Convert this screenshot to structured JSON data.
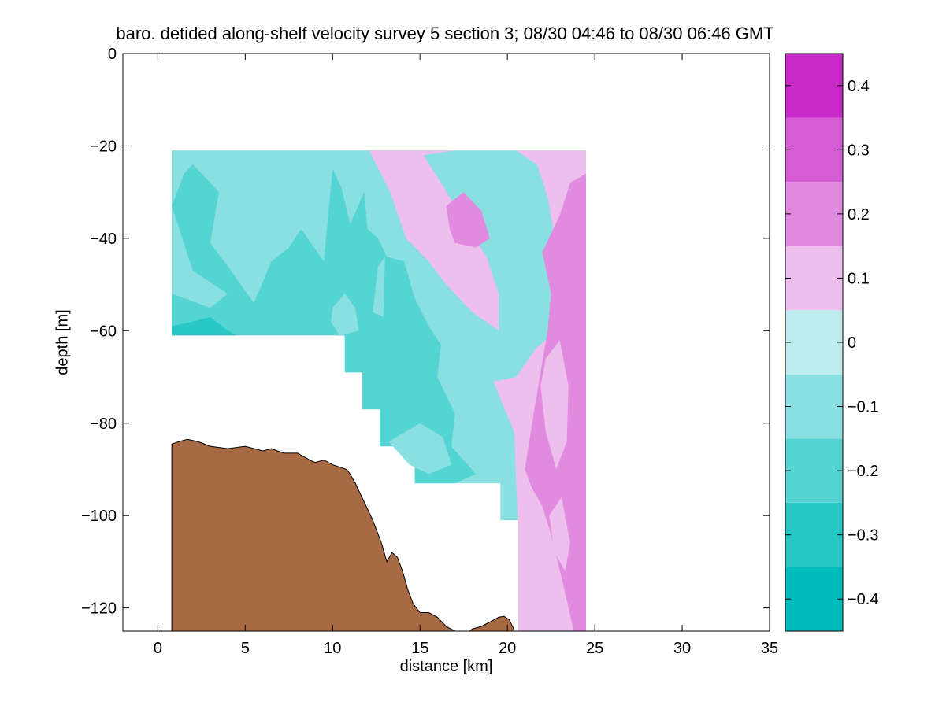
{
  "chart_data": {
    "type": "heatmap",
    "subtype": "filled-contour section",
    "title": "baro. detided along-shelf velocity survey 5 section 3; 08/30 04:46 to 08/30 06:46 GMT",
    "xlabel": "distance [km]",
    "ylabel": "depth [m]",
    "xlim": [
      -2,
      35
    ],
    "ylim": [
      -125,
      0
    ],
    "xticks": [
      0,
      5,
      10,
      15,
      20,
      25,
      30,
      35
    ],
    "yticks": [
      0,
      -20,
      -40,
      -60,
      -80,
      -100,
      -120
    ],
    "grid": false,
    "colorbar": {
      "levels": [
        -0.45,
        -0.35,
        -0.25,
        -0.15,
        -0.05,
        0.05,
        0.15,
        0.25,
        0.35,
        0.45
      ],
      "colors": [
        "#00bcbc",
        "#27c7c8",
        "#55d4d4",
        "#8ae0e0",
        "#bdecec",
        "#eebeec",
        "#e08ae0",
        "#d55cd5",
        "#c82ac8",
        "#bd00bd"
      ],
      "ticks": [
        -0.4,
        -0.3,
        -0.2,
        -0.1,
        0,
        0.1,
        0.2,
        0.3,
        0.4
      ]
    },
    "data_mask": [
      [
        0.8,
        -21
      ],
      [
        24.5,
        -21
      ],
      [
        24.5,
        -125
      ],
      [
        20.6,
        -125
      ],
      [
        20.6,
        -101
      ],
      [
        19.6,
        -101
      ],
      [
        19.6,
        -93
      ],
      [
        14.7,
        -93
      ],
      [
        14.7,
        -85
      ],
      [
        12.7,
        -85
      ],
      [
        12.7,
        -77
      ],
      [
        11.7,
        -77
      ],
      [
        11.7,
        -69
      ],
      [
        10.7,
        -69
      ],
      [
        10.7,
        -61
      ],
      [
        0.8,
        -61
      ]
    ],
    "regions": [
      {
        "level": -0.1,
        "points": [
          [
            0.8,
            -21
          ],
          [
            20.5,
            -21
          ],
          [
            21.7,
            -23
          ],
          [
            22.0,
            -32
          ],
          [
            22.5,
            -40
          ],
          [
            22.8,
            -50
          ],
          [
            23.1,
            -56
          ],
          [
            22.8,
            -60
          ],
          [
            21.5,
            -64
          ],
          [
            20.5,
            -69
          ],
          [
            19.4,
            -72
          ],
          [
            19.9,
            -82
          ],
          [
            19.3,
            -90
          ],
          [
            19.6,
            -93
          ],
          [
            14.7,
            -93
          ],
          [
            14.7,
            -85
          ],
          [
            12.7,
            -85
          ],
          [
            12.7,
            -77
          ],
          [
            11.7,
            -77
          ],
          [
            11.7,
            -69
          ],
          [
            10.7,
            -69
          ],
          [
            10.7,
            -61
          ],
          [
            0.8,
            -61
          ]
        ]
      },
      {
        "level": -0.2,
        "points": [
          [
            0.8,
            -33
          ],
          [
            1.5,
            -26
          ],
          [
            2.0,
            -24
          ],
          [
            3.5,
            -30
          ],
          [
            3.0,
            -41
          ],
          [
            4.0,
            -46
          ],
          [
            5.5,
            -54
          ],
          [
            6.5,
            -45
          ],
          [
            7.5,
            -42
          ],
          [
            8.2,
            -38
          ],
          [
            9.5,
            -45
          ],
          [
            9.8,
            -33
          ],
          [
            10.0,
            -25
          ],
          [
            10.5,
            -29
          ],
          [
            11.0,
            -37
          ],
          [
            11.8,
            -30
          ],
          [
            12.0,
            -38
          ],
          [
            12.6,
            -40
          ],
          [
            13.1,
            -44
          ],
          [
            14.1,
            -45
          ],
          [
            14.7,
            -53
          ],
          [
            15.5,
            -59
          ],
          [
            16.2,
            -63
          ],
          [
            16.0,
            -70
          ],
          [
            17.0,
            -78
          ],
          [
            16.8,
            -85
          ],
          [
            18.2,
            -91
          ],
          [
            17.0,
            -93
          ],
          [
            14.7,
            -93
          ],
          [
            14.7,
            -85
          ],
          [
            12.7,
            -85
          ],
          [
            12.7,
            -77
          ],
          [
            11.7,
            -77
          ],
          [
            11.7,
            -69
          ],
          [
            10.7,
            -69
          ],
          [
            10.7,
            -61
          ],
          [
            0.8,
            -61
          ],
          [
            0.8,
            -52
          ],
          [
            3.0,
            -55
          ],
          [
            4.0,
            -52
          ],
          [
            2.0,
            -47
          ]
        ]
      },
      {
        "level": -0.1,
        "points": [
          [
            10.0,
            -55
          ],
          [
            10.7,
            -52
          ],
          [
            11.3,
            -55
          ],
          [
            11.5,
            -60
          ],
          [
            10.4,
            -61
          ],
          [
            9.9,
            -58
          ]
        ]
      },
      {
        "level": -0.1,
        "points": [
          [
            13.2,
            -84
          ],
          [
            15.0,
            -80
          ],
          [
            16.3,
            -83
          ],
          [
            16.8,
            -89
          ],
          [
            15.5,
            -91
          ],
          [
            14.4,
            -89
          ]
        ]
      },
      {
        "level": -0.1,
        "points": [
          [
            12.3,
            -56
          ],
          [
            12.6,
            -46
          ],
          [
            13.0,
            -44
          ],
          [
            12.9,
            -57
          ]
        ]
      },
      {
        "level": -0.3,
        "points": [
          [
            0.8,
            -59
          ],
          [
            2.0,
            -58
          ],
          [
            3.0,
            -57
          ],
          [
            4.0,
            -60
          ],
          [
            4.5,
            -61
          ],
          [
            0.8,
            -61
          ]
        ]
      },
      {
        "level": 0.1,
        "points": [
          [
            12.1,
            -21
          ],
          [
            20.5,
            -21
          ],
          [
            21.7,
            -24
          ],
          [
            22.3,
            -31
          ],
          [
            22.7,
            -40
          ],
          [
            23.0,
            -50
          ],
          [
            23.1,
            -56
          ],
          [
            22.8,
            -60
          ],
          [
            21.6,
            -64
          ],
          [
            20.5,
            -70
          ],
          [
            19.2,
            -71
          ],
          [
            20.4,
            -82
          ],
          [
            20.5,
            -93
          ],
          [
            20.6,
            -101
          ],
          [
            20.6,
            -125
          ],
          [
            24.5,
            -125
          ],
          [
            24.5,
            -21
          ],
          [
            17.0,
            -21
          ],
          [
            15.2,
            -22
          ],
          [
            16.2,
            -28
          ],
          [
            17.5,
            -36
          ],
          [
            18.8,
            -44
          ],
          [
            19.5,
            -52
          ],
          [
            19.5,
            -60
          ],
          [
            18.0,
            -56
          ],
          [
            16.5,
            -50
          ],
          [
            15.5,
            -45
          ],
          [
            14.2,
            -40
          ],
          [
            13.3,
            -30
          ]
        ]
      },
      {
        "level": 0.2,
        "points": [
          [
            22.0,
            -43
          ],
          [
            23.0,
            -35
          ],
          [
            23.6,
            -28
          ],
          [
            24.5,
            -26
          ],
          [
            24.5,
            -125
          ],
          [
            23.8,
            -125
          ],
          [
            23.2,
            -115
          ],
          [
            22.5,
            -104
          ],
          [
            22.0,
            -98
          ],
          [
            21.4,
            -94
          ],
          [
            21.0,
            -90
          ],
          [
            21.5,
            -78
          ],
          [
            22.3,
            -60
          ],
          [
            22.5,
            -52
          ]
        ]
      },
      {
        "level": 0.2,
        "points": [
          [
            16.5,
            -33
          ],
          [
            17.5,
            -30
          ],
          [
            18.5,
            -34
          ],
          [
            19.0,
            -40
          ],
          [
            18.2,
            -42
          ],
          [
            17.0,
            -41
          ],
          [
            16.7,
            -38
          ]
        ]
      },
      {
        "level": 0.1,
        "points": [
          [
            22.2,
            -66
          ],
          [
            23.0,
            -62
          ],
          [
            23.5,
            -72
          ],
          [
            23.4,
            -84
          ],
          [
            22.8,
            -90
          ],
          [
            22.2,
            -82
          ],
          [
            21.9,
            -72
          ]
        ]
      },
      {
        "level": 0.1,
        "points": [
          [
            22.4,
            -100
          ],
          [
            23.1,
            -96
          ],
          [
            23.6,
            -106
          ],
          [
            23.3,
            -112
          ],
          [
            22.7,
            -108
          ]
        ]
      }
    ],
    "bathymetry": {
      "color": "#a86a44",
      "surface": [
        [
          0.8,
          -84.5
        ],
        [
          1.2,
          -84
        ],
        [
          1.7,
          -83.5
        ],
        [
          2.3,
          -84
        ],
        [
          3.0,
          -85
        ],
        [
          4.0,
          -85.5
        ],
        [
          5.0,
          -85
        ],
        [
          6.0,
          -86
        ],
        [
          6.5,
          -85.5
        ],
        [
          7.2,
          -86.5
        ],
        [
          8.0,
          -86.5
        ],
        [
          8.7,
          -88
        ],
        [
          9.0,
          -88.5
        ],
        [
          9.5,
          -88
        ],
        [
          10.0,
          -89
        ],
        [
          10.8,
          -90
        ],
        [
          11.0,
          -91
        ],
        [
          11.3,
          -93
        ],
        [
          11.8,
          -97
        ],
        [
          12.3,
          -101
        ],
        [
          12.8,
          -106
        ],
        [
          13.1,
          -110
        ],
        [
          13.4,
          -108
        ],
        [
          13.7,
          -109
        ],
        [
          14.0,
          -112
        ],
        [
          14.3,
          -116
        ],
        [
          14.6,
          -119
        ],
        [
          15.0,
          -121
        ],
        [
          15.5,
          -121
        ],
        [
          16.0,
          -122
        ],
        [
          16.5,
          -124
        ],
        [
          17.0,
          -125
        ],
        [
          17.5,
          -126
        ],
        [
          18.0,
          -124.5
        ],
        [
          18.5,
          -124
        ],
        [
          19.0,
          -123
        ],
        [
          19.5,
          -122
        ],
        [
          19.8,
          -121.8
        ],
        [
          20.1,
          -122.5
        ],
        [
          20.3,
          -124
        ],
        [
          20.4,
          -125
        ]
      ]
    }
  }
}
